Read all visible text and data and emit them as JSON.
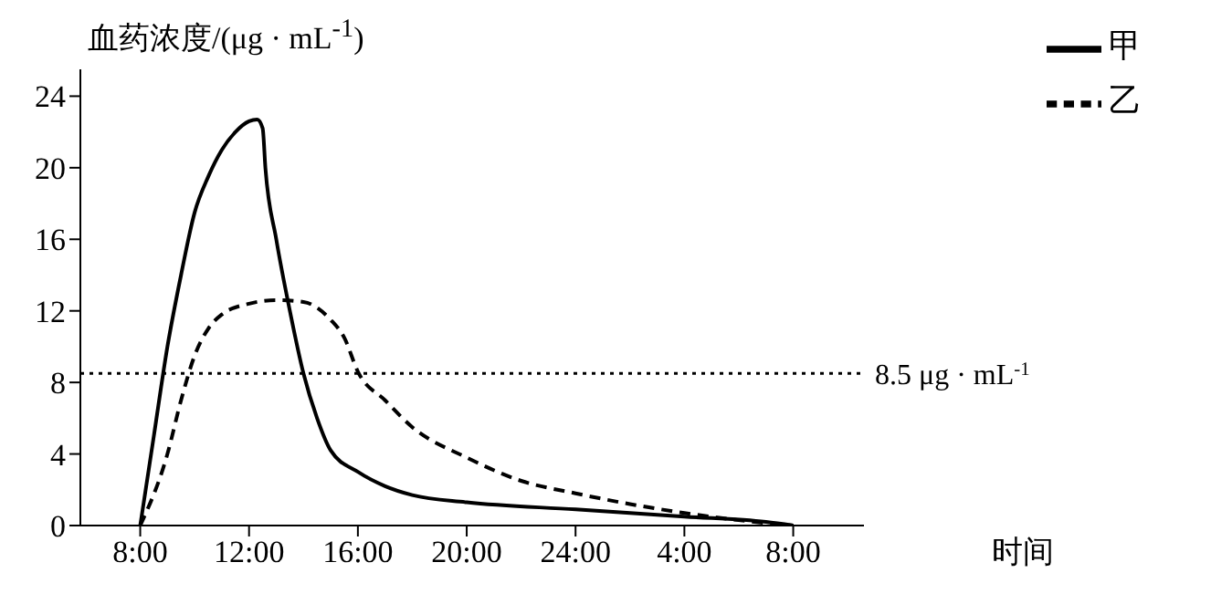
{
  "chart_data": {
    "type": "line",
    "ylabel": "血药浓度/(μg · mL$^{-1}$)",
    "xlabel": "时间",
    "xlim": [
      "--01-01T05:48",
      "--01-02T10:36"
    ],
    "xticks": [
      {
        "value": "--01-01T08:00",
        "label": "8:00"
      },
      {
        "value": "--01-01T12:00",
        "label": "12:00"
      },
      {
        "value": "--01-01T16:00",
        "label": "16:00"
      },
      {
        "value": "--01-01T20:00",
        "label": "20:00"
      },
      {
        "value": "--01-02T00:00",
        "label": "24:00"
      },
      {
        "value": "--01-02T04:00",
        "label": "4:00"
      },
      {
        "value": "--01-02T08:00",
        "label": "8:00"
      }
    ],
    "ylim": [
      0,
      25.5
    ],
    "yticks": [
      0,
      4,
      8,
      12,
      16,
      20,
      24
    ],
    "legend": "top right",
    "marker": "none",
    "series": [
      {
        "name": "甲",
        "color": "#000000",
        "line_style": "solid",
        "x": [
          "--01-01T08:00",
          "--01-01T08:30",
          "--01-01T09:00",
          "--01-01T09:30",
          "--01-01T10:00",
          "--01-01T10:30",
          "--01-01T11:00",
          "--01-01T11:30",
          "--01-01T12:00",
          "--01-01T12:18",
          "--01-01T12:30",
          "--01-01T12:36",
          "--01-01T13:00",
          "--01-01T13:30",
          "--01-01T14:00",
          "--01-01T14:30",
          "--01-01T15:00",
          "--01-01T16:00",
          "--01-01T17:00",
          "--01-01T18:00",
          "--01-01T20:00",
          "--01-02T00:00",
          "--01-02T04:00",
          "--01-02T07:00",
          "--01-02T08:00"
        ],
        "values": [
          0,
          5,
          10,
          14,
          17.5,
          19.5,
          21,
          22,
          22.6,
          22.7,
          22.2,
          20,
          16,
          12,
          8.5,
          6,
          4.2,
          3,
          2.2,
          1.7,
          1.3,
          0.9,
          0.5,
          0.2,
          0
        ]
      },
      {
        "name": "乙",
        "color": "#000000",
        "line_style": "dashed",
        "x": [
          "--01-01T08:00",
          "--01-01T09:00",
          "--01-01T09:30",
          "--01-01T10:00",
          "--01-01T10:30",
          "--01-01T11:00",
          "--01-01T12:00",
          "--01-01T13:00",
          "--01-01T14:00",
          "--01-01T15:00",
          "--01-01T15:30",
          "--01-01T16:00",
          "--01-01T17:00",
          "--01-01T18:00",
          "--01-01T20:00",
          "--01-01T22:00",
          "--01-02T00:00",
          "--01-02T02:00",
          "--01-02T04:00",
          "--01-02T06:00",
          "--01-02T08:00"
        ],
        "values": [
          0,
          4,
          7,
          9.5,
          11,
          11.8,
          12.4,
          12.6,
          12.5,
          11.5,
          10.5,
          8.6,
          7,
          5.5,
          3.8,
          2.5,
          1.8,
          1.2,
          0.7,
          0.3,
          0
        ]
      }
    ],
    "ref_lines": [
      {
        "axis": "y",
        "value": 8.5,
        "label": "8.5 μg · mL$^{-1}$",
        "line_style": "dotted",
        "color": "#000000"
      }
    ]
  }
}
